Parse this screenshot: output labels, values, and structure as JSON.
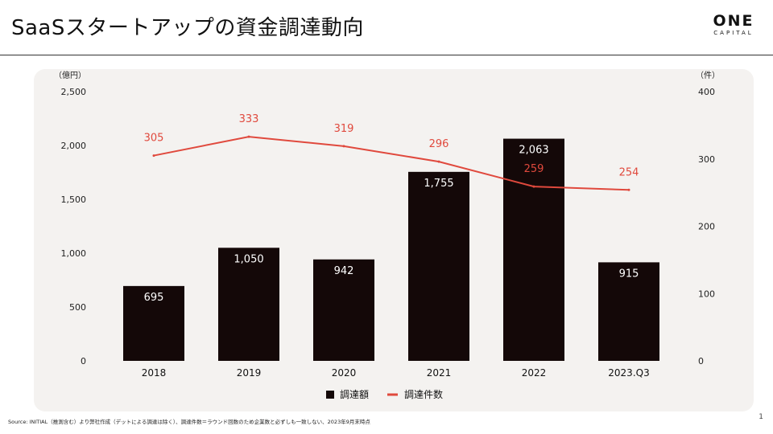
{
  "slide": {
    "title": "SaaSスタートアップの資金調達動向",
    "logo_main": "ONE",
    "logo_sub": "CAPITAL",
    "source": "Source: INITIAL（推測含む）より弊社作成（デットによる調達は除く）、調達件数＝ラウンド回数のため企業数と必ずしも一致しない、2023年9月末時点",
    "page_number": "1"
  },
  "chart_data": {
    "type": "bar",
    "categories": [
      "2018",
      "2019",
      "2020",
      "2021",
      "2022",
      "2023.Q3"
    ],
    "y_left_unit": "（億円）",
    "y_right_unit": "（件）",
    "y_left_ticks": [
      "2,500",
      "2,000",
      "1,500",
      "1,000",
      "500",
      "0"
    ],
    "y_right_ticks": [
      "400",
      "300",
      "200",
      "100",
      "0"
    ],
    "ylim_left": [
      0,
      2500
    ],
    "ylim_right": [
      0,
      400
    ],
    "series": [
      {
        "name": "調達額",
        "type": "bar",
        "axis": "left",
        "color": "#140808",
        "values": [
          695,
          1050,
          942,
          1755,
          2063,
          915
        ],
        "labels": [
          "695",
          "1,050",
          "942",
          "1,755",
          "2,063",
          "915"
        ]
      },
      {
        "name": "調達件数",
        "type": "line",
        "axis": "right",
        "color": "#e0493d",
        "values": [
          305,
          333,
          319,
          296,
          259,
          254
        ],
        "labels": [
          "305",
          "333",
          "319",
          "296",
          "259",
          "254"
        ]
      }
    ],
    "legend_position": "bottom-center",
    "grid": false
  }
}
